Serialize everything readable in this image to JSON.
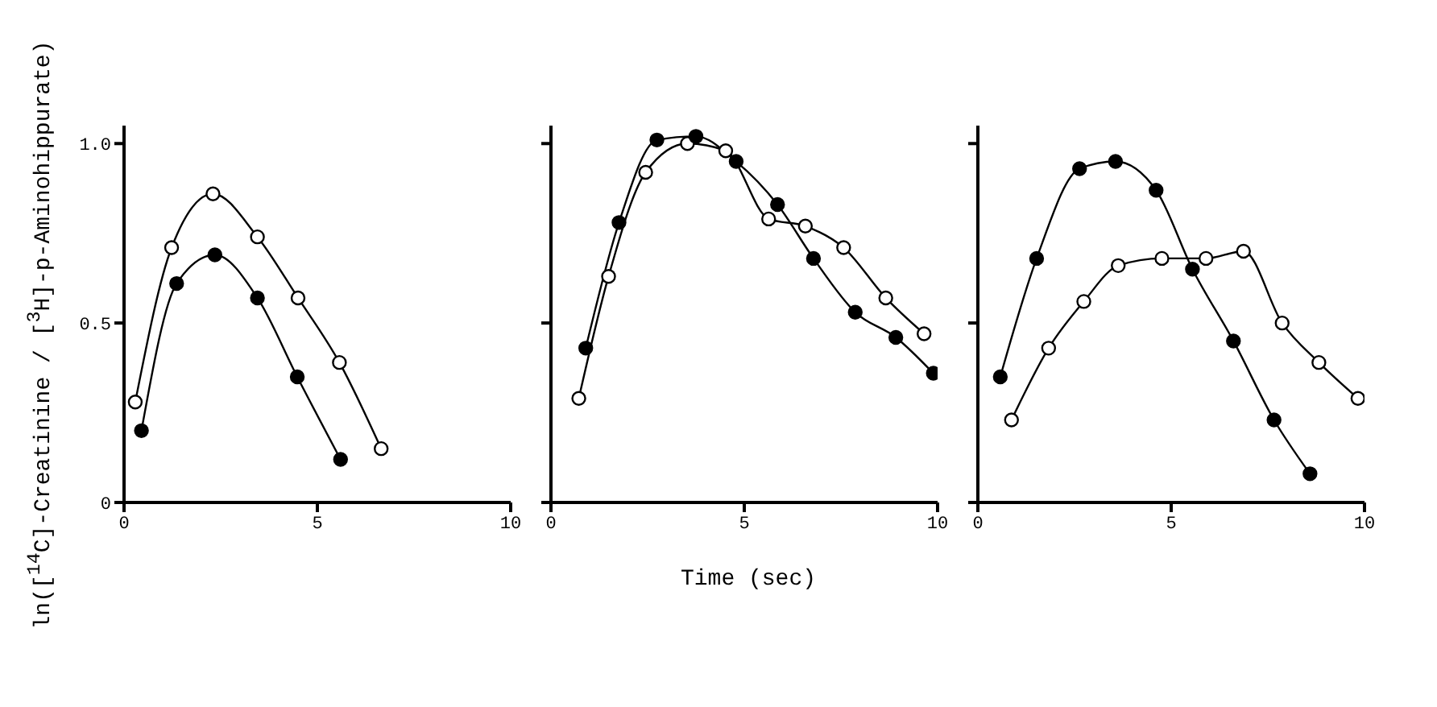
{
  "chart_data": [
    {
      "type": "line",
      "ylabel": "ln([$^{14}$C]-Creatinine / [$^{3}$H]-p-Aminohippurate)",
      "xlim": [
        0,
        10
      ],
      "xticks": [
        0,
        5,
        10
      ],
      "ylim": [
        0,
        1.05
      ],
      "yticks": [
        0,
        0.5,
        {
          "value": 1,
          "label": "1.0"
        }
      ],
      "marker": "circle",
      "series": [
        {
          "color": "#000000",
          "colors": [
            "#ffffff",
            "#ffffff",
            "#ffffff",
            "#ffffff",
            "#ffffff",
            "#ffffff",
            "#ffffff"
          ],
          "x": [
            0.29,
            1.23,
            2.3,
            3.45,
            4.5,
            5.57,
            6.65
          ],
          "values": [
            0.28,
            0.71,
            0.86,
            0.74,
            0.57,
            0.39,
            0.15
          ]
        },
        {
          "color": "#000000",
          "x": [
            0.45,
            1.36,
            2.35,
            3.45,
            4.48,
            5.6
          ],
          "values": [
            0.2,
            0.61,
            0.69,
            0.57,
            0.35,
            0.12
          ]
        }
      ]
    },
    {
      "type": "line",
      "xlabel": "Time (sec)",
      "xlim": [
        0,
        10
      ],
      "xticks": [
        0,
        5,
        10
      ],
      "ylim": [
        0,
        1.05
      ],
      "yticks": [
        0,
        0.5,
        1
      ],
      "tick_labels": "x",
      "marker": "circle",
      "series": [
        {
          "color": "#000000",
          "colors": [
            "#ffffff",
            "#ffffff",
            "#ffffff",
            "#ffffff",
            "#ffffff",
            "#ffffff",
            "#ffffff",
            "#ffffff",
            "#ffffff",
            "#ffffff"
          ],
          "x": [
            0.72,
            1.49,
            2.45,
            3.53,
            4.52,
            5.63,
            6.58,
            7.57,
            8.66,
            9.65
          ],
          "values": [
            0.29,
            0.63,
            0.92,
            1.0,
            0.98,
            0.79,
            0.77,
            0.71,
            0.57,
            0.47
          ]
        },
        {
          "color": "#000000",
          "x": [
            0.9,
            1.76,
            2.74,
            3.75,
            4.79,
            5.86,
            6.79,
            7.87,
            8.92,
            9.89
          ],
          "values": [
            0.43,
            0.78,
            1.01,
            1.02,
            0.95,
            0.83,
            0.68,
            0.53,
            0.46,
            0.36
          ]
        }
      ]
    },
    {
      "type": "line",
      "xlim": [
        0,
        10
      ],
      "xticks": [
        0,
        5,
        10
      ],
      "ylim": [
        0,
        1.05
      ],
      "yticks": [
        0,
        0.5,
        1
      ],
      "tick_labels": "x",
      "marker": "circle",
      "series": [
        {
          "color": "#000000",
          "colors": [
            "#ffffff",
            "#ffffff",
            "#ffffff",
            "#ffffff",
            "#ffffff",
            "#ffffff",
            "#ffffff",
            "#ffffff",
            "#ffffff",
            "#ffffff"
          ],
          "x": [
            0.87,
            1.83,
            2.74,
            3.63,
            4.76,
            5.9,
            6.87,
            7.87,
            8.82,
            9.83
          ],
          "values": [
            0.23,
            0.43,
            0.56,
            0.66,
            0.68,
            0.68,
            0.7,
            0.5,
            0.39,
            0.29
          ]
        },
        {
          "color": "#000000",
          "x": [
            0.58,
            1.52,
            2.63,
            3.56,
            4.61,
            5.55,
            6.61,
            7.66,
            8.59
          ],
          "values": [
            0.35,
            0.68,
            0.93,
            0.95,
            0.87,
            0.65,
            0.45,
            0.23,
            0.08
          ]
        }
      ]
    }
  ]
}
